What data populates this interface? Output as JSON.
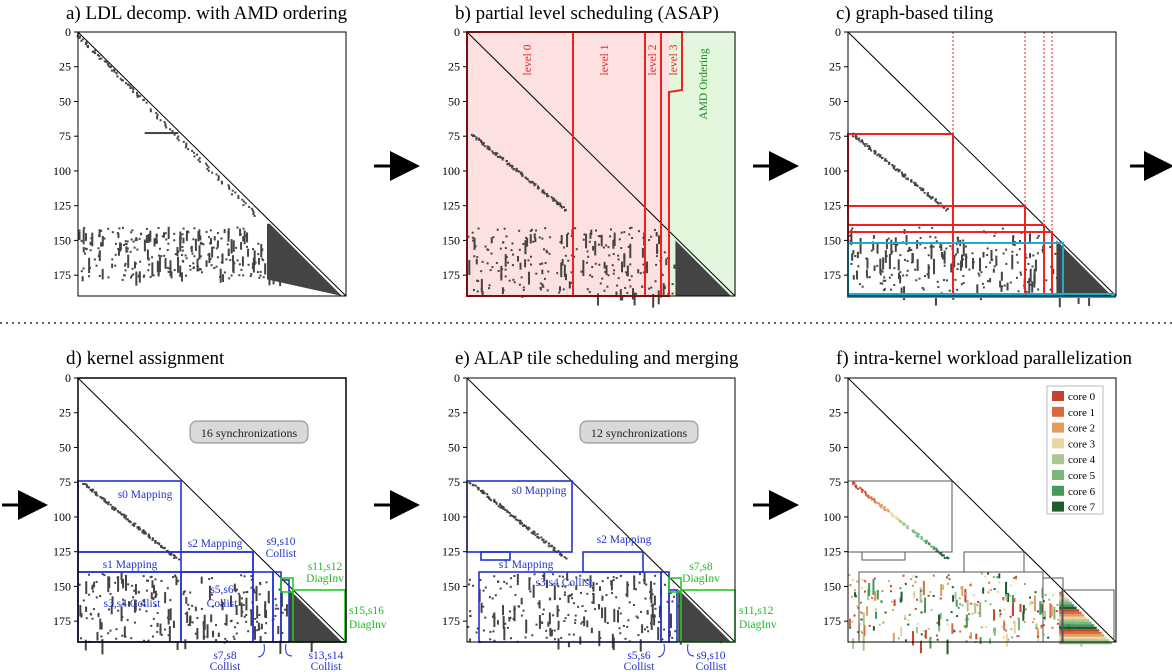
{
  "panels": {
    "a": {
      "label": "a)",
      "title": "LDL decomp. with AMD ordering"
    },
    "b": {
      "label": "b)",
      "title": "partial level scheduling (ASAP)"
    },
    "c": {
      "label": "c)",
      "title": "graph-based tiling"
    },
    "d": {
      "label": "d)",
      "title": "kernel assignment"
    },
    "e": {
      "label": "e)",
      "title": "ALAP tile scheduling and merging"
    },
    "f": {
      "label": "f)",
      "title": "intra-kernel workload parallelization"
    }
  },
  "axis_ticks": [
    "0",
    "25",
    "50",
    "75",
    "100",
    "125",
    "150",
    "175"
  ],
  "levels": [
    "level 0",
    "level 1",
    "level 2",
    "level 3"
  ],
  "amd_label": "AMD Ordering",
  "d_badge": "16 synchronizations",
  "e_badge": "12 synchronizations",
  "d_labels": {
    "s0": "s0 Mapping",
    "s1": "s1 Mapping",
    "s2": "s2 Mapping",
    "s34": "s3,s4 Collist",
    "s56a": "s5,s6",
    "s56b": "Collist",
    "s78a": "s7,s8",
    "s78b": "Collist",
    "s910a": "s9,s10",
    "s910b": "Collist",
    "s1112a": "s11,s12",
    "s1112b": "DiagInv",
    "s1314a": "s13,s14",
    "s1314b": "Collist",
    "s1516a": "s15,s16",
    "s1516b": "DiagInv"
  },
  "e_labels": {
    "s0": "s0 Mapping",
    "s1": "s1 Mapping",
    "s2": "s2 Mapping",
    "s34": "s3,s4 Collist",
    "s56a": "s5,s6",
    "s56b": "Collist",
    "s910a": "s9,s10",
    "s910b": "Collist",
    "s78a": "s7,s8",
    "s78b": "DiagInv",
    "s1112a": "s11,s12",
    "s1112b": "DiagInv"
  },
  "legend": [
    {
      "label": "core 0",
      "color": "#c2452b"
    },
    {
      "label": "core 1",
      "color": "#d86a3c"
    },
    {
      "label": "core 2",
      "color": "#e49a5b"
    },
    {
      "label": "core 3",
      "color": "#ead4a0"
    },
    {
      "label": "core 4",
      "color": "#a9c790"
    },
    {
      "label": "core 5",
      "color": "#78b87a"
    },
    {
      "label": "core 6",
      "color": "#44995a"
    },
    {
      "label": "core 7",
      "color": "#1d5c2e"
    }
  ],
  "colors": {
    "block": "#2233cc",
    "diag": "#22bb22",
    "level": "#ee2222",
    "tile_cyan": "#22aacc",
    "pattern": "#444444"
  }
}
